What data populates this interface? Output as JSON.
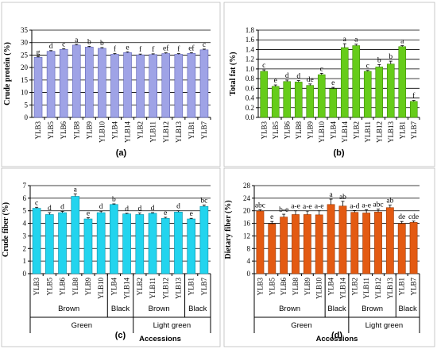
{
  "chart_data": [
    {
      "type": "bar",
      "panel_label": "(a)",
      "ylabel": "Crude protein (%)",
      "ylim": [
        0,
        35
      ],
      "yticks": [
        0,
        5,
        10,
        15,
        20,
        25,
        30,
        35
      ],
      "categories": [
        "YLB3",
        "YLB5",
        "YLB6",
        "YLB8",
        "YLB9",
        "YLB10",
        "YLB4",
        "YLB14",
        "YLB2",
        "YLB11",
        "YLB12",
        "YLB13",
        "YLB1",
        "YLB7"
      ],
      "values": [
        24.1,
        26.5,
        27.3,
        29.0,
        28.2,
        27.7,
        25.3,
        26.0,
        25.1,
        25.2,
        25.6,
        25.3,
        25.7,
        27.1
      ],
      "errors": [
        0.3,
        0.3,
        0.3,
        0.3,
        0.3,
        0.3,
        0.3,
        0.3,
        0.3,
        0.3,
        0.3,
        0.3,
        0.3,
        0.3
      ],
      "sig_letters": [
        "g",
        "d",
        "c",
        "a",
        "b",
        "b",
        "f",
        "e",
        "f",
        "f",
        "ef",
        "f",
        "ef",
        "c"
      ],
      "bar_color": "#9fa3e6",
      "bar_stroke": "#5d62b5",
      "grid": "horizontal",
      "xlabel": "",
      "groups_primary": [],
      "groups_secondary": []
    },
    {
      "type": "bar",
      "panel_label": "(b)",
      "ylabel": "Total fat (%)",
      "ylim": [
        0,
        1.8
      ],
      "yticks": [
        0.0,
        0.2,
        0.4,
        0.6,
        0.8,
        1.0,
        1.2,
        1.4,
        1.6,
        1.8
      ],
      "ytick_decimals": 1,
      "categories": [
        "YLB3",
        "YLB5",
        "YLB6",
        "YLB8",
        "YLB9",
        "YLB10",
        "YLB4",
        "YLB14",
        "YLB2",
        "YLB11",
        "YLB12",
        "YLB13",
        "YLB1",
        "YLB7"
      ],
      "values": [
        0.95,
        0.64,
        0.74,
        0.73,
        0.66,
        0.88,
        0.59,
        1.44,
        1.48,
        0.95,
        1.04,
        1.1,
        1.46,
        0.33
      ],
      "errors": [
        0.03,
        0.03,
        0.03,
        0.03,
        0.03,
        0.03,
        0.03,
        0.08,
        0.03,
        0.02,
        0.05,
        0.06,
        0.02,
        0.02
      ],
      "sig_letters": [
        "c",
        "e",
        "d",
        "d",
        "de",
        "c",
        "e",
        "a",
        "a",
        "c",
        "b",
        "b",
        "a",
        "f"
      ],
      "bar_color": "#66cc1a",
      "bar_stroke": "#3d8a00",
      "grid": "horizontal",
      "xlabel": "",
      "groups_primary": [],
      "groups_secondary": []
    },
    {
      "type": "bar",
      "panel_label": "(c)",
      "ylabel": "Crude fiber (%)",
      "ylim": [
        0,
        7
      ],
      "yticks": [
        0,
        1,
        2,
        3,
        4,
        5,
        6,
        7
      ],
      "categories": [
        "YLB3",
        "YLB5",
        "YLB6",
        "YLB8",
        "YLB9",
        "YLB10",
        "YLB4",
        "YLB14",
        "YLB2",
        "YLB11",
        "YLB12",
        "YLB13",
        "YLB1",
        "YLB7"
      ],
      "values": [
        5.2,
        4.7,
        4.85,
        6.15,
        4.35,
        4.85,
        5.5,
        4.75,
        4.7,
        4.8,
        4.4,
        4.9,
        4.35,
        5.35
      ],
      "errors": [
        0.08,
        0.15,
        0.1,
        0.18,
        0.1,
        0.12,
        0.05,
        0.05,
        0.12,
        0.05,
        0.08,
        0.1,
        0.05,
        0.1
      ],
      "sig_letters": [
        "c",
        "d",
        "d",
        "a",
        "e",
        "d",
        "b",
        "d",
        "d",
        "d",
        "e",
        "d",
        "e",
        "bc"
      ],
      "bar_color": "#22d4ee",
      "bar_stroke": "#0b8fa8",
      "grid": "horizontal",
      "xlabel": "Accessions",
      "groups_primary": [
        {
          "label": "Brown",
          "from": 0,
          "to": 5
        },
        {
          "label": "Black",
          "from": 6,
          "to": 7
        },
        {
          "label": "Brown",
          "from": 8,
          "to": 11
        },
        {
          "label": "Black",
          "from": 12,
          "to": 13
        }
      ],
      "groups_secondary": [
        {
          "label": "Green",
          "from": 0,
          "to": 7
        },
        {
          "label": "Light green",
          "from": 8,
          "to": 13
        }
      ]
    },
    {
      "type": "bar",
      "panel_label": "(d)",
      "ylabel": "Dietary fiber (%)",
      "ylim": [
        0,
        28
      ],
      "yticks": [
        0,
        4,
        8,
        12,
        16,
        20,
        24,
        28
      ],
      "categories": [
        "YLB3",
        "YLB5",
        "YLB6",
        "YLB8",
        "YLB9",
        "YLB10",
        "YLB4",
        "YLB14",
        "YLB2",
        "YLB11",
        "YLB12",
        "YLB13",
        "YLB1",
        "YLB7"
      ],
      "values": [
        19.9,
        15.8,
        18.0,
        18.8,
        18.8,
        18.7,
        22.0,
        21.5,
        19.5,
        19.3,
        19.6,
        21.0,
        15.9,
        16.3
      ],
      "errors": [
        0.4,
        0.8,
        0.9,
        1.2,
        1.1,
        1.3,
        1.7,
        1.5,
        0.6,
        1.0,
        0.9,
        0.8,
        0.7,
        0.4
      ],
      "sig_letters": [
        "abc",
        "e",
        "b-e",
        "a-e",
        "a-e",
        "a-e",
        "a",
        "ab",
        "a-d",
        "a-e",
        "abc",
        "ab",
        "de",
        "cde"
      ],
      "bar_color": "#e35a12",
      "bar_stroke": "#9c3a06",
      "grid": "horizontal",
      "xlabel": "Accessions",
      "groups_primary": [
        {
          "label": "Brown",
          "from": 0,
          "to": 5
        },
        {
          "label": "Black",
          "from": 6,
          "to": 7
        },
        {
          "label": "Brown",
          "from": 8,
          "to": 11
        },
        {
          "label": "Black",
          "from": 12,
          "to": 13
        }
      ],
      "groups_secondary": [
        {
          "label": "Green",
          "from": 0,
          "to": 7
        },
        {
          "label": "Light green",
          "from": 8,
          "to": 13
        }
      ]
    }
  ]
}
